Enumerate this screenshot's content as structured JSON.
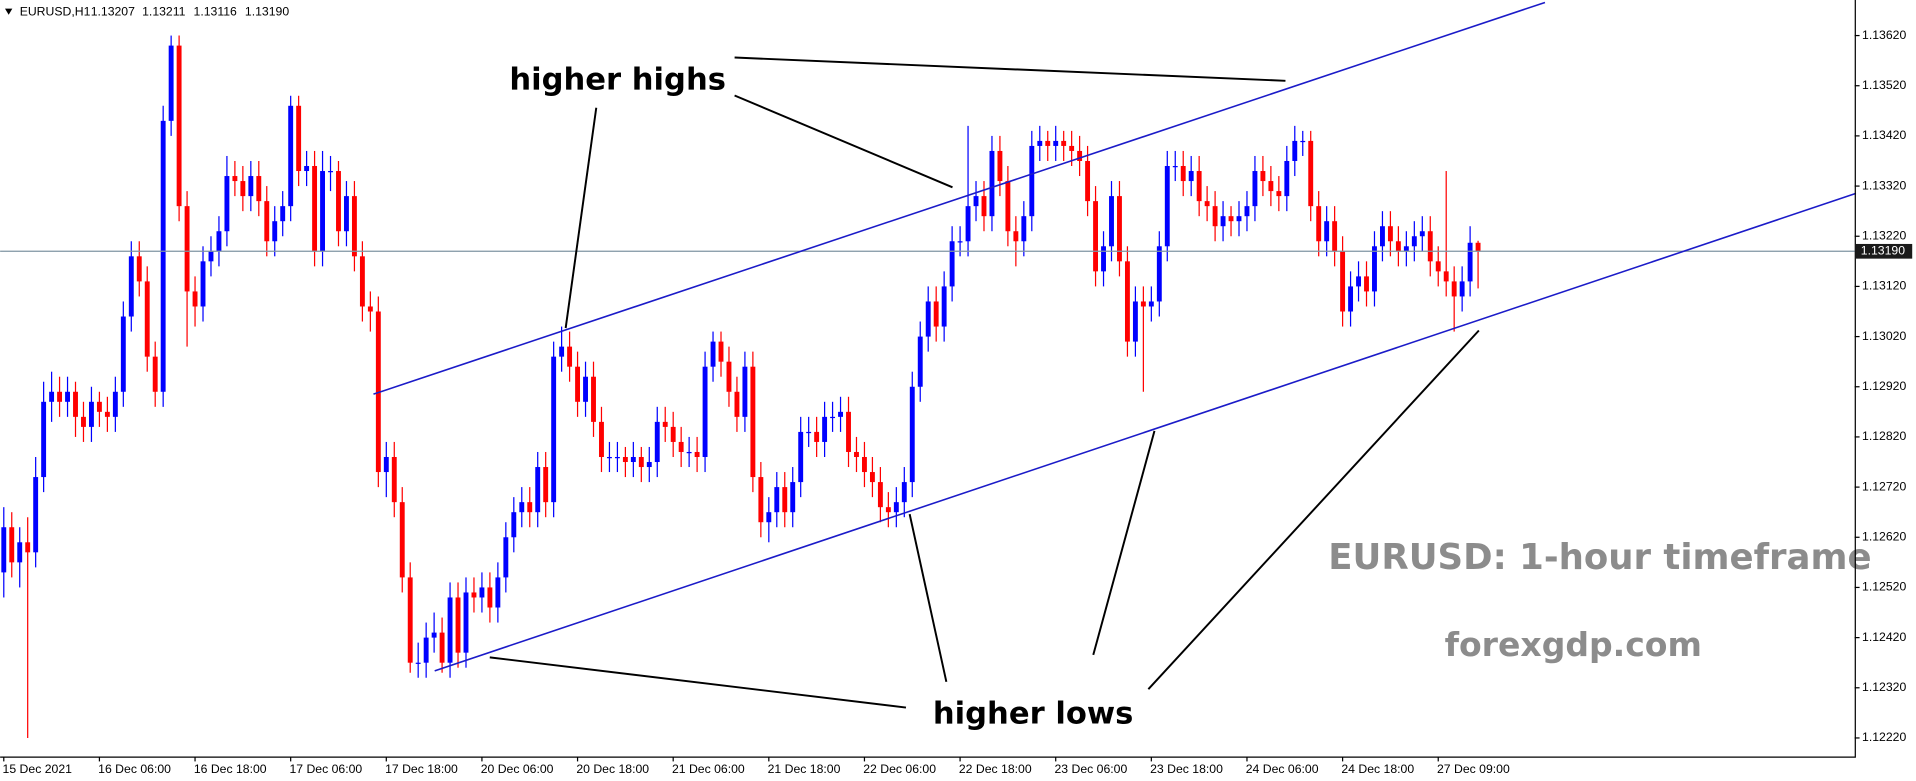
{
  "chart_data": {
    "type": "candlestick",
    "header": {
      "symbol": "EURUSD,H1",
      "values": [
        "1.13207",
        "1.13211",
        "1.13116",
        "1.13190"
      ]
    },
    "annotations": [
      "higher highs",
      "higher lows",
      "EURUSD: 1-hour timeframe",
      "forexgdp.com"
    ],
    "up_color": "#0000ff",
    "down_color": "#ff0000",
    "price_line_color": "#7f95a3",
    "ylim": [
      1.12183,
      1.13686
    ],
    "yticks": [
      {
        "value": 1.1362,
        "label": "1.13620"
      },
      {
        "value": 1.1352,
        "label": "1.13520"
      },
      {
        "value": 1.1342,
        "label": "1.13420"
      },
      {
        "value": 1.1332,
        "label": "1.13320"
      },
      {
        "value": 1.1322,
        "label": "1.13220"
      },
      {
        "value": 1.1312,
        "label": "1.13120"
      },
      {
        "value": 1.1302,
        "label": "1.13020"
      },
      {
        "value": 1.1292,
        "label": "1.12920"
      },
      {
        "value": 1.1282,
        "label": "1.12820"
      },
      {
        "value": 1.1272,
        "label": "1.12720"
      },
      {
        "value": 1.1262,
        "label": "1.12620"
      },
      {
        "value": 1.1252,
        "label": "1.12520"
      },
      {
        "value": 1.1242,
        "label": "1.12420"
      },
      {
        "value": 1.1232,
        "label": "1.12320"
      },
      {
        "value": 1.1222,
        "label": "1.12220"
      }
    ],
    "categories": [
      "15 Dec 2021",
      null,
      null,
      null,
      null,
      null,
      null,
      null,
      null,
      null,
      null,
      null,
      "16 Dec 06:00",
      null,
      null,
      null,
      null,
      null,
      null,
      null,
      null,
      null,
      null,
      null,
      "16 Dec 18:00",
      null,
      null,
      null,
      null,
      null,
      null,
      null,
      null,
      null,
      null,
      null,
      "17 Dec 06:00",
      null,
      null,
      null,
      null,
      null,
      null,
      null,
      null,
      null,
      null,
      null,
      "17 Dec 18:00",
      null,
      null,
      null,
      null,
      null,
      null,
      null,
      null,
      null,
      null,
      null,
      "20 Dec 06:00",
      null,
      null,
      null,
      null,
      null,
      null,
      null,
      null,
      null,
      null,
      null,
      "20 Dec 18:00",
      null,
      null,
      null,
      null,
      null,
      null,
      null,
      null,
      null,
      null,
      null,
      "21 Dec 06:00",
      null,
      null,
      null,
      null,
      null,
      null,
      null,
      null,
      null,
      null,
      null,
      "21 Dec 18:00",
      null,
      null,
      null,
      null,
      null,
      null,
      null,
      null,
      null,
      null,
      null,
      "22 Dec 06:00",
      null,
      null,
      null,
      null,
      null,
      null,
      null,
      null,
      null,
      null,
      null,
      "22 Dec 18:00",
      null,
      null,
      null,
      null,
      null,
      null,
      null,
      null,
      null,
      null,
      null,
      "23 Dec 06:00",
      null,
      null,
      null,
      null,
      null,
      null,
      null,
      null,
      null,
      null,
      null,
      "23 Dec 18:00",
      null,
      null,
      null,
      null,
      null,
      null,
      null,
      null,
      null,
      null,
      null,
      "24 Dec 06:00",
      null,
      null,
      null,
      null,
      null,
      null,
      null,
      null,
      null,
      null,
      null,
      "24 Dec 18:00",
      null,
      null,
      null,
      null,
      null,
      null,
      null,
      null,
      null,
      null,
      null,
      "27 Dec 09:00",
      null,
      null,
      null,
      null,
      null
    ],
    "ohlc": [
      [
        1.1255,
        1.1268,
        1.125,
        1.1264
      ],
      [
        1.1264,
        1.1267,
        1.1254,
        1.1257
      ],
      [
        1.1257,
        1.1264,
        1.1252,
        1.1261
      ],
      [
        1.1261,
        1.1266,
        1.1222,
        1.1259
      ],
      [
        1.1259,
        1.1278,
        1.1256,
        1.1274
      ],
      [
        1.1274,
        1.1293,
        1.1271,
        1.1289
      ],
      [
        1.1289,
        1.1295,
        1.1285,
        1.1291
      ],
      [
        1.1291,
        1.1294,
        1.1286,
        1.1289
      ],
      [
        1.1289,
        1.1294,
        1.1286,
        1.1291
      ],
      [
        1.1291,
        1.1293,
        1.1282,
        1.1286
      ],
      [
        1.1286,
        1.1289,
        1.1281,
        1.1284
      ],
      [
        1.1284,
        1.1292,
        1.1281,
        1.1289
      ],
      [
        1.1289,
        1.1291,
        1.1284,
        1.1287
      ],
      [
        1.1287,
        1.129,
        1.1283,
        1.1286
      ],
      [
        1.1286,
        1.1294,
        1.1283,
        1.1291
      ],
      [
        1.1291,
        1.1309,
        1.1288,
        1.1306
      ],
      [
        1.1306,
        1.1321,
        1.1303,
        1.1318
      ],
      [
        1.1318,
        1.1321,
        1.131,
        1.1313
      ],
      [
        1.1313,
        1.1316,
        1.1295,
        1.1298
      ],
      [
        1.1298,
        1.1301,
        1.1288,
        1.1291
      ],
      [
        1.1291,
        1.1348,
        1.1288,
        1.1345
      ],
      [
        1.1345,
        1.1362,
        1.1342,
        1.136
      ],
      [
        1.136,
        1.1362,
        1.1325,
        1.1328
      ],
      [
        1.1328,
        1.1331,
        1.13,
        1.1311
      ],
      [
        1.1311,
        1.1314,
        1.1304,
        1.1308
      ],
      [
        1.1308,
        1.132,
        1.1305,
        1.1317
      ],
      [
        1.1317,
        1.1322,
        1.1314,
        1.1319
      ],
      [
        1.1319,
        1.1326,
        1.1316,
        1.1323
      ],
      [
        1.1323,
        1.1338,
        1.132,
        1.1334
      ],
      [
        1.1334,
        1.1337,
        1.133,
        1.1333
      ],
      [
        1.1333,
        1.1336,
        1.1327,
        1.133
      ],
      [
        1.133,
        1.1337,
        1.1327,
        1.1334
      ],
      [
        1.1334,
        1.1337,
        1.1326,
        1.1329
      ],
      [
        1.1329,
        1.1332,
        1.1318,
        1.1321
      ],
      [
        1.1321,
        1.1328,
        1.1318,
        1.1325
      ],
      [
        1.1325,
        1.1331,
        1.1322,
        1.1328
      ],
      [
        1.1328,
        1.135,
        1.1325,
        1.1348
      ],
      [
        1.1348,
        1.135,
        1.1332,
        1.1335
      ],
      [
        1.1335,
        1.1339,
        1.1332,
        1.1336
      ],
      [
        1.1336,
        1.1339,
        1.1316,
        1.1319
      ],
      [
        1.1319,
        1.1339,
        1.1316,
        1.1335
      ],
      [
        1.1335,
        1.1338,
        1.1331,
        1.1335
      ],
      [
        1.1335,
        1.1337,
        1.132,
        1.1323
      ],
      [
        1.1323,
        1.1333,
        1.132,
        1.133
      ],
      [
        1.133,
        1.1333,
        1.1315,
        1.1318
      ],
      [
        1.1318,
        1.1321,
        1.1305,
        1.1308
      ],
      [
        1.1308,
        1.1311,
        1.1303,
        1.1307
      ],
      [
        1.1307,
        1.131,
        1.1272,
        1.1275
      ],
      [
        1.1275,
        1.1281,
        1.127,
        1.1278
      ],
      [
        1.1278,
        1.1281,
        1.1266,
        1.1269
      ],
      [
        1.1269,
        1.1272,
        1.1251,
        1.1254
      ],
      [
        1.1254,
        1.1257,
        1.1235,
        1.1237
      ],
      [
        1.1237,
        1.1241,
        1.1234,
        1.1237
      ],
      [
        1.1237,
        1.1245,
        1.1234,
        1.1242
      ],
      [
        1.1242,
        1.1247,
        1.1239,
        1.1243
      ],
      [
        1.1243,
        1.1246,
        1.1235,
        1.1237
      ],
      [
        1.1237,
        1.1253,
        1.1234,
        1.125
      ],
      [
        1.125,
        1.1253,
        1.1236,
        1.1239
      ],
      [
        1.1239,
        1.1254,
        1.1236,
        1.1251
      ],
      [
        1.1251,
        1.1254,
        1.1247,
        1.125
      ],
      [
        1.125,
        1.1255,
        1.1247,
        1.1252
      ],
      [
        1.1252,
        1.1255,
        1.1245,
        1.1248
      ],
      [
        1.1248,
        1.1257,
        1.1245,
        1.1254
      ],
      [
        1.1254,
        1.1265,
        1.1251,
        1.1262
      ],
      [
        1.1262,
        1.127,
        1.1259,
        1.1267
      ],
      [
        1.1267,
        1.1272,
        1.1264,
        1.1269
      ],
      [
        1.1269,
        1.1272,
        1.1264,
        1.1267
      ],
      [
        1.1267,
        1.1279,
        1.1264,
        1.1276
      ],
      [
        1.1276,
        1.1279,
        1.1266,
        1.1269
      ],
      [
        1.1269,
        1.1301,
        1.1266,
        1.1298
      ],
      [
        1.1298,
        1.1304,
        1.1295,
        1.13
      ],
      [
        1.13,
        1.1303,
        1.1293,
        1.1296
      ],
      [
        1.1296,
        1.1299,
        1.1286,
        1.1289
      ],
      [
        1.1289,
        1.1297,
        1.1286,
        1.1294
      ],
      [
        1.1294,
        1.1297,
        1.1282,
        1.1285
      ],
      [
        1.1285,
        1.1288,
        1.1275,
        1.1278
      ],
      [
        1.1278,
        1.1281,
        1.1275,
        1.1278
      ],
      [
        1.1278,
        1.1281,
        1.1275,
        1.1278
      ],
      [
        1.1278,
        1.128,
        1.1274,
        1.1277
      ],
      [
        1.1277,
        1.1281,
        1.1274,
        1.1278
      ],
      [
        1.1278,
        1.128,
        1.1273,
        1.1276
      ],
      [
        1.1276,
        1.128,
        1.1273,
        1.1277
      ],
      [
        1.1277,
        1.1288,
        1.1274,
        1.1285
      ],
      [
        1.1285,
        1.1288,
        1.1281,
        1.1284
      ],
      [
        1.1284,
        1.1287,
        1.1278,
        1.1281
      ],
      [
        1.1281,
        1.1284,
        1.1276,
        1.1279
      ],
      [
        1.1279,
        1.1282,
        1.1276,
        1.1279
      ],
      [
        1.1279,
        1.1282,
        1.1275,
        1.1278
      ],
      [
        1.1278,
        1.1299,
        1.1275,
        1.1296
      ],
      [
        1.1296,
        1.1303,
        1.1293,
        1.1301
      ],
      [
        1.1301,
        1.1303,
        1.1294,
        1.1297
      ],
      [
        1.1297,
        1.13,
        1.1288,
        1.1291
      ],
      [
        1.1291,
        1.1294,
        1.1283,
        1.1286
      ],
      [
        1.1286,
        1.1299,
        1.1283,
        1.1296
      ],
      [
        1.1296,
        1.1299,
        1.1271,
        1.1274
      ],
      [
        1.1274,
        1.1277,
        1.1262,
        1.1265
      ],
      [
        1.1265,
        1.127,
        1.1261,
        1.1267
      ],
      [
        1.1267,
        1.1275,
        1.1264,
        1.1272
      ],
      [
        1.1272,
        1.1275,
        1.1264,
        1.1267
      ],
      [
        1.1267,
        1.1276,
        1.1264,
        1.1273
      ],
      [
        1.1273,
        1.1286,
        1.127,
        1.1283
      ],
      [
        1.1283,
        1.1286,
        1.128,
        1.1283
      ],
      [
        1.1283,
        1.1286,
        1.1278,
        1.1281
      ],
      [
        1.1281,
        1.1289,
        1.1278,
        1.1286
      ],
      [
        1.1286,
        1.1289,
        1.1283,
        1.1286
      ],
      [
        1.1286,
        1.129,
        1.1283,
        1.1287
      ],
      [
        1.1287,
        1.129,
        1.1276,
        1.1279
      ],
      [
        1.1279,
        1.1282,
        1.1275,
        1.1278
      ],
      [
        1.1278,
        1.1281,
        1.1272,
        1.1275
      ],
      [
        1.1275,
        1.1278,
        1.127,
        1.1273
      ],
      [
        1.1273,
        1.1276,
        1.1265,
        1.1268
      ],
      [
        1.1268,
        1.1271,
        1.1264,
        1.1267
      ],
      [
        1.1267,
        1.1272,
        1.1264,
        1.1269
      ],
      [
        1.1269,
        1.1276,
        1.1266,
        1.1273
      ],
      [
        1.1273,
        1.1295,
        1.127,
        1.1292
      ],
      [
        1.1292,
        1.1305,
        1.1289,
        1.1302
      ],
      [
        1.1302,
        1.1312,
        1.1299,
        1.1309
      ],
      [
        1.1309,
        1.1312,
        1.1301,
        1.1304
      ],
      [
        1.1304,
        1.1315,
        1.1301,
        1.1312
      ],
      [
        1.1312,
        1.1324,
        1.1309,
        1.1321
      ],
      [
        1.1321,
        1.1324,
        1.1318,
        1.1321
      ],
      [
        1.1321,
        1.1344,
        1.1318,
        1.1328
      ],
      [
        1.1328,
        1.1333,
        1.1325,
        1.133
      ],
      [
        1.133,
        1.1333,
        1.1323,
        1.1326
      ],
      [
        1.1326,
        1.1342,
        1.1323,
        1.1339
      ],
      [
        1.1339,
        1.1342,
        1.133,
        1.1333
      ],
      [
        1.1333,
        1.1336,
        1.132,
        1.1323
      ],
      [
        1.1323,
        1.1326,
        1.1316,
        1.1321
      ],
      [
        1.1321,
        1.1329,
        1.1318,
        1.1326
      ],
      [
        1.1326,
        1.1343,
        1.1323,
        1.134
      ],
      [
        1.134,
        1.1344,
        1.1337,
        1.1341
      ],
      [
        1.1341,
        1.1343,
        1.1337,
        1.134
      ],
      [
        1.134,
        1.1344,
        1.1337,
        1.1341
      ],
      [
        1.1341,
        1.1343,
        1.1337,
        1.134
      ],
      [
        1.134,
        1.1343,
        1.1336,
        1.1339
      ],
      [
        1.1339,
        1.1342,
        1.1334,
        1.1337
      ],
      [
        1.1337,
        1.134,
        1.1326,
        1.1329
      ],
      [
        1.1329,
        1.1332,
        1.1312,
        1.1315
      ],
      [
        1.1315,
        1.1323,
        1.1312,
        1.132
      ],
      [
        1.132,
        1.1333,
        1.1317,
        1.133
      ],
      [
        1.133,
        1.1333,
        1.1314,
        1.1317
      ],
      [
        1.1317,
        1.132,
        1.1298,
        1.1301
      ],
      [
        1.1301,
        1.1312,
        1.1298,
        1.1309
      ],
      [
        1.1309,
        1.1312,
        1.1291,
        1.1308
      ],
      [
        1.1308,
        1.1312,
        1.1305,
        1.1309
      ],
      [
        1.1309,
        1.1323,
        1.1306,
        1.132
      ],
      [
        1.132,
        1.1339,
        1.1317,
        1.1336
      ],
      [
        1.1336,
        1.1339,
        1.1333,
        1.1336
      ],
      [
        1.1336,
        1.1339,
        1.133,
        1.1333
      ],
      [
        1.1333,
        1.1338,
        1.133,
        1.1335
      ],
      [
        1.1335,
        1.1338,
        1.1326,
        1.1329
      ],
      [
        1.1329,
        1.1332,
        1.1325,
        1.1328
      ],
      [
        1.1328,
        1.1331,
        1.1321,
        1.1324
      ],
      [
        1.1324,
        1.1329,
        1.1321,
        1.1326
      ],
      [
        1.1326,
        1.1328,
        1.1322,
        1.1325
      ],
      [
        1.1325,
        1.1329,
        1.1322,
        1.1326
      ],
      [
        1.1326,
        1.1331,
        1.1323,
        1.1328
      ],
      [
        1.1328,
        1.1338,
        1.1325,
        1.1335
      ],
      [
        1.1335,
        1.1338,
        1.133,
        1.1333
      ],
      [
        1.1333,
        1.1336,
        1.1328,
        1.1331
      ],
      [
        1.1331,
        1.1334,
        1.1327,
        1.133
      ],
      [
        1.133,
        1.134,
        1.1327,
        1.1337
      ],
      [
        1.1337,
        1.1344,
        1.1334,
        1.1341
      ],
      [
        1.1341,
        1.1343,
        1.1338,
        1.1341
      ],
      [
        1.1341,
        1.1343,
        1.1325,
        1.1328
      ],
      [
        1.1328,
        1.1331,
        1.1318,
        1.1321
      ],
      [
        1.1321,
        1.1328,
        1.1318,
        1.1325
      ],
      [
        1.1325,
        1.1328,
        1.1316,
        1.1319
      ],
      [
        1.1319,
        1.1322,
        1.1304,
        1.1307
      ],
      [
        1.1307,
        1.1315,
        1.1304,
        1.1312
      ],
      [
        1.1312,
        1.1317,
        1.1309,
        1.1314
      ],
      [
        1.1314,
        1.1317,
        1.1308,
        1.1311
      ],
      [
        1.1311,
        1.1323,
        1.1308,
        1.132
      ],
      [
        1.132,
        1.1327,
        1.1317,
        1.1324
      ],
      [
        1.1324,
        1.1327,
        1.1318,
        1.1321
      ],
      [
        1.1321,
        1.1324,
        1.1316,
        1.1319
      ],
      [
        1.1319,
        1.1323,
        1.1316,
        1.132
      ],
      [
        1.132,
        1.1325,
        1.1317,
        1.1322
      ],
      [
        1.1322,
        1.1326,
        1.1319,
        1.1323
      ],
      [
        1.1323,
        1.1326,
        1.1314,
        1.1317
      ],
      [
        1.1317,
        1.132,
        1.1312,
        1.1315
      ],
      [
        1.1315,
        1.1335,
        1.131,
        1.1313
      ],
      [
        1.1313,
        1.1316,
        1.1303,
        1.131
      ],
      [
        1.131,
        1.1316,
        1.1307,
        1.1313
      ],
      [
        1.1313,
        1.1324,
        1.131,
        1.13207
      ],
      [
        1.13207,
        1.13211,
        1.13116,
        1.1319
      ]
    ]
  }
}
